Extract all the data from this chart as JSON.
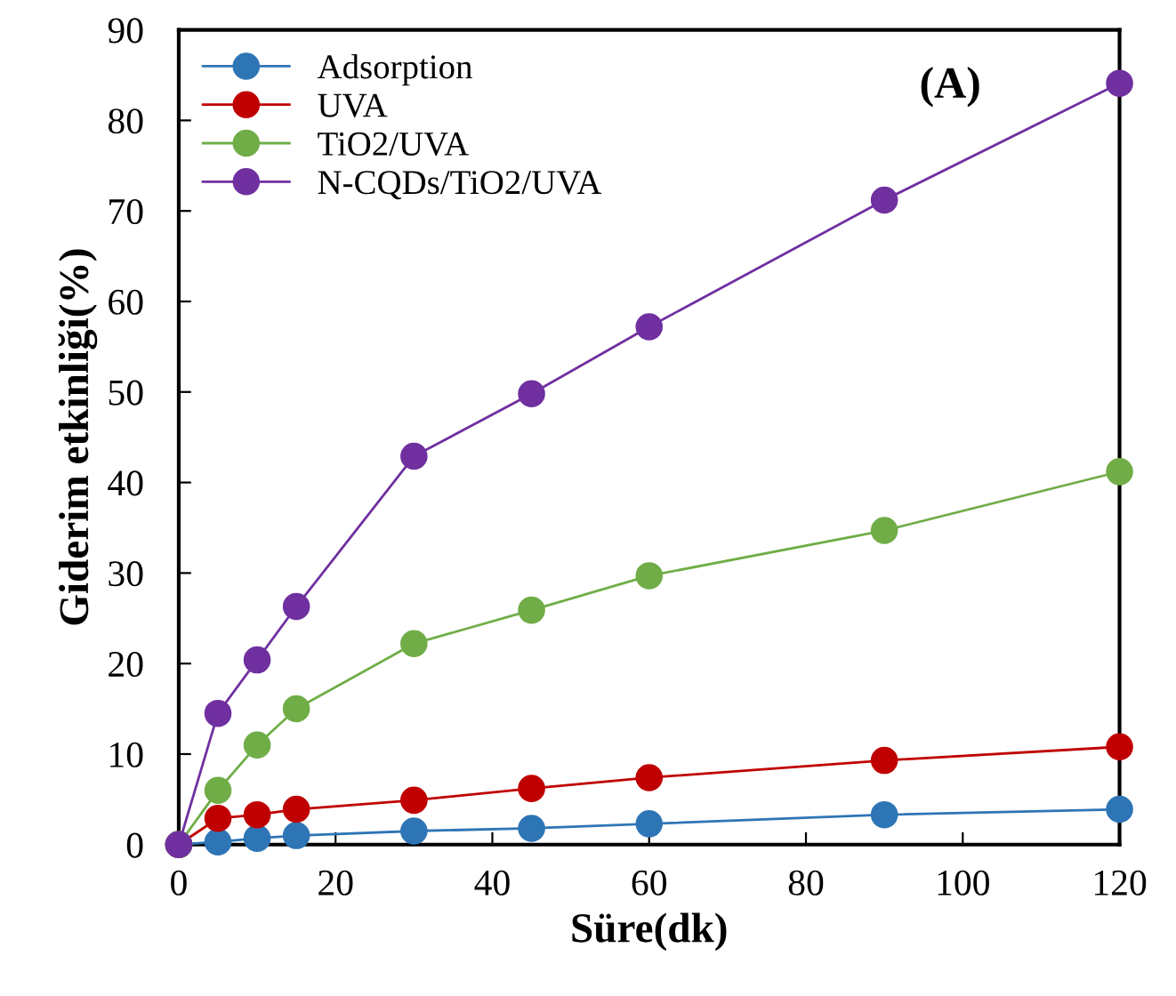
{
  "chart_data": {
    "type": "line",
    "xlabel": "Süre(dk)",
    "ylabel": "Giderim etkinliği(%)",
    "x": [
      0,
      5,
      10,
      15,
      30,
      45,
      60,
      90,
      120
    ],
    "series": [
      {
        "name": "Adsorption",
        "color": "#2e75b6",
        "values": [
          0,
          0.3,
          0.7,
          1,
          1.5,
          1.8,
          2.3,
          3.3,
          3.9
        ]
      },
      {
        "name": "UVA",
        "color": "#c00000",
        "values": [
          0,
          2.9,
          3.3,
          3.9,
          4.9,
          6.2,
          7.4,
          9.3,
          10.8
        ]
      },
      {
        "name": "TiO2/UVA",
        "color": "#70ad47",
        "values": [
          0,
          6,
          11,
          15,
          22.2,
          25.9,
          29.7,
          34.7,
          41.2
        ]
      },
      {
        "name": "N-CQDs/TiO2/UVA",
        "color": "#7030a0",
        "values": [
          0,
          14.5,
          20.4,
          26.3,
          42.9,
          49.8,
          57.2,
          71.2,
          84.1
        ]
      }
    ],
    "xlim": [
      0,
      120
    ],
    "ylim": [
      0,
      90
    ],
    "xticks": [
      0,
      20,
      40,
      60,
      80,
      100,
      120
    ],
    "yticks": [
      0,
      10,
      20,
      30,
      40,
      50,
      60,
      70,
      80,
      90
    ],
    "annotations": [
      "(A)"
    ],
    "legend": "top left",
    "marker": "circle",
    "line_style": "solid",
    "grid": false
  }
}
